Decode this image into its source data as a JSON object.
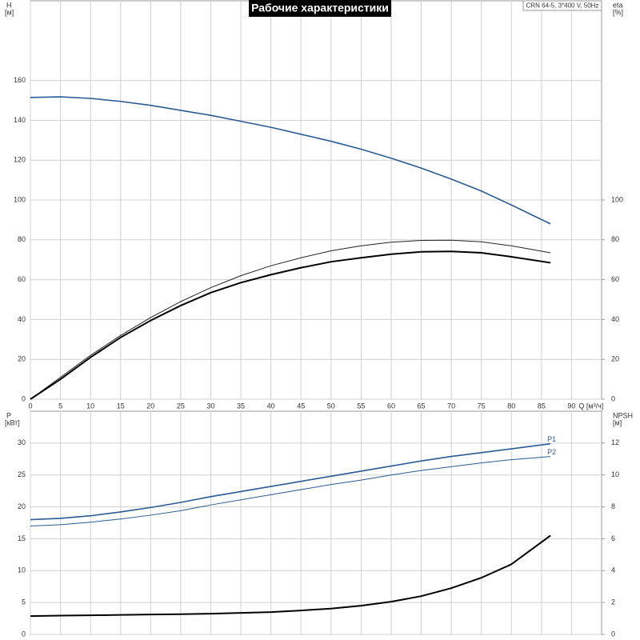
{
  "chart_data": [
    {
      "type": "line",
      "title": "Рабочие характеристики",
      "annotation": "CRN 64-5, 3*400 V, 50Hz",
      "ylabel": "H",
      "ylabel_unit": "[м]",
      "y2label": "eta",
      "y2label_unit": "[%]",
      "xlabel": "Q [м³/ч]",
      "x": [
        0,
        5,
        10,
        15,
        20,
        25,
        30,
        35,
        40,
        45,
        50,
        55,
        60,
        65,
        70,
        75,
        80,
        86.5
      ],
      "xlim": [
        0,
        95
      ],
      "xticks": [
        0,
        5,
        10,
        15,
        20,
        25,
        30,
        35,
        40,
        45,
        50,
        55,
        60,
        65,
        70,
        75,
        80,
        85,
        90
      ],
      "xtick_labels": true,
      "ylim": [
        0,
        200
      ],
      "yticks": [
        0,
        20,
        40,
        60,
        80,
        100,
        120,
        140,
        160
      ],
      "y2lim": [
        0,
        200
      ],
      "y2ticks": [
        0,
        20,
        40,
        60,
        80,
        100
      ],
      "grid": true,
      "series": [
        {
          "color": "#2a5b94",
          "line_width": 1.6,
          "values": [
            151.5,
            151.8,
            151,
            149.5,
            147.5,
            145,
            142.5,
            139.5,
            136.5,
            133,
            129.5,
            125.5,
            121,
            116,
            110.5,
            104.5,
            97.5,
            88
          ]
        },
        {
          "color": "#222222",
          "line_width": 1,
          "axis": "y2",
          "values": [
            0,
            11,
            22,
            32,
            41,
            49,
            56,
            62,
            67,
            71,
            74.5,
            77,
            78.8,
            79.7,
            79.8,
            79,
            77,
            73.5
          ]
        },
        {
          "color": "#000000",
          "line_width": 2,
          "axis": "y2",
          "values": [
            0,
            10,
            21,
            31,
            39.5,
            47,
            53.5,
            58.5,
            62.5,
            66,
            69,
            71,
            72.8,
            74,
            74.2,
            73.5,
            71.5,
            68.5
          ]
        }
      ]
    },
    {
      "type": "line",
      "ylabel": "P",
      "ylabel_unit": "[кВт]",
      "y2label": "NPSH",
      "y2label_unit": "[м]",
      "x": [
        0,
        5,
        10,
        15,
        20,
        25,
        30,
        35,
        40,
        45,
        50,
        55,
        60,
        65,
        70,
        75,
        80,
        86.5
      ],
      "xlim": [
        0,
        95
      ],
      "xticks": [
        0,
        5,
        10,
        15,
        20,
        25,
        30,
        35,
        40,
        45,
        50,
        55,
        60,
        65,
        70,
        75,
        80,
        85,
        90
      ],
      "xtick_labels": false,
      "ylim": [
        0,
        35
      ],
      "yticks": [
        0,
        5,
        10,
        15,
        20,
        25,
        30
      ],
      "y2lim": [
        0,
        14
      ],
      "y2ticks": [
        0,
        2,
        4,
        6,
        8,
        10,
        12
      ],
      "grid": true,
      "series": [
        {
          "name": "P1",
          "color": "#2a5b94",
          "line_width": 1.6,
          "values": [
            18,
            18.2,
            18.6,
            19.2,
            19.9,
            20.7,
            21.6,
            22.4,
            23.2,
            24,
            24.8,
            25.6,
            26.4,
            27.2,
            27.9,
            28.5,
            29.1,
            29.9
          ]
        },
        {
          "name": "P2",
          "color": "#2a5b94",
          "line_width": 1,
          "values": [
            17,
            17.2,
            17.6,
            18.1,
            18.7,
            19.4,
            20.3,
            21.1,
            21.9,
            22.7,
            23.5,
            24.2,
            25,
            25.7,
            26.3,
            26.9,
            27.4,
            27.9
          ]
        },
        {
          "color": "#000000",
          "line_width": 2,
          "axis": "y2",
          "values": [
            1.15,
            1.18,
            1.2,
            1.22,
            1.25,
            1.27,
            1.3,
            1.35,
            1.4,
            1.5,
            1.62,
            1.8,
            2.05,
            2.4,
            2.9,
            3.55,
            4.4,
            6.2
          ]
        }
      ]
    }
  ]
}
